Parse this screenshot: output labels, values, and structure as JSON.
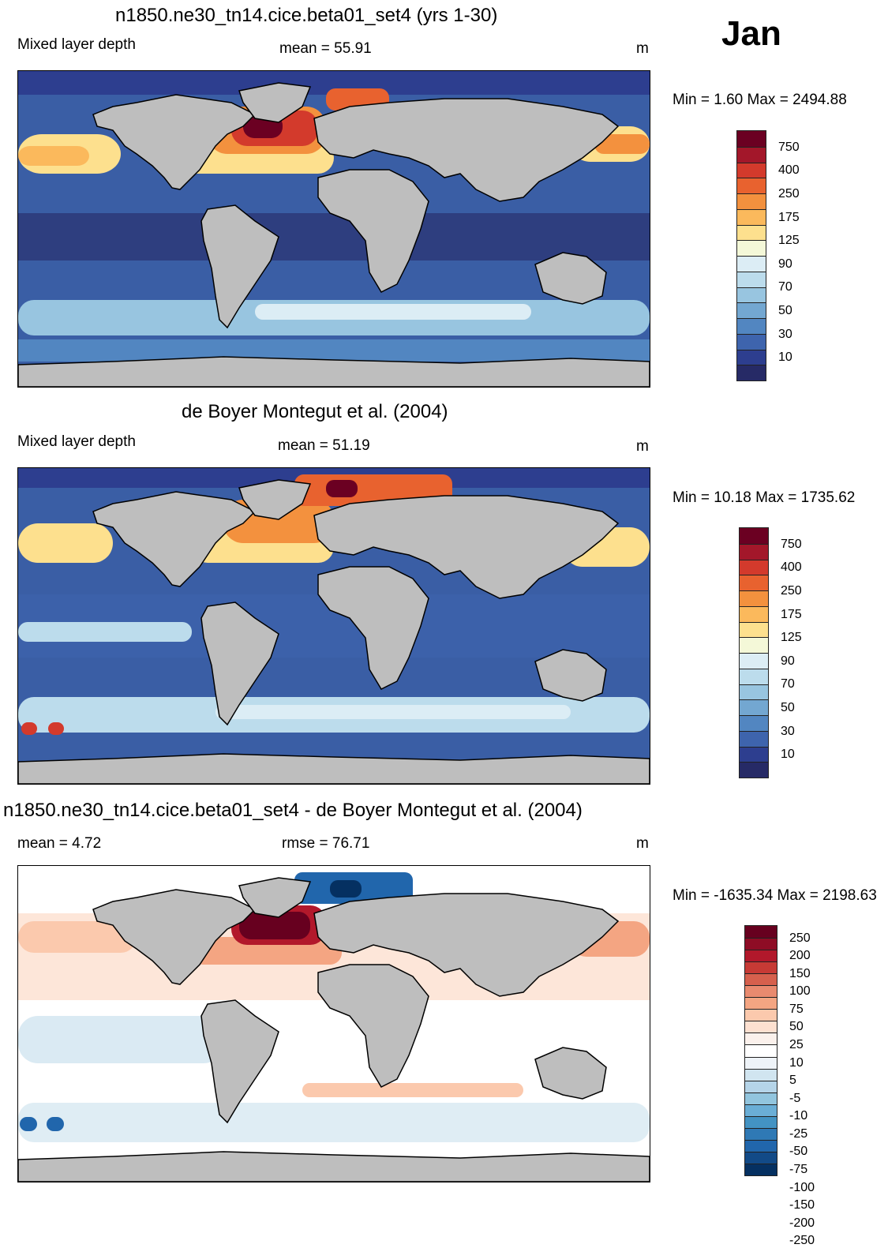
{
  "month": "Jan",
  "panels": [
    {
      "title": "n1850.ne30_tn14.cice.beta01_set4 (yrs 1-30)",
      "left_label": "Mixed layer depth",
      "stat_label": "mean =  55.91",
      "units": "m",
      "minmax": "Min =   1.60 Max = 2494.88",
      "colorbar": {
        "colors": [
          "#6b0022",
          "#a3172a",
          "#d33a2c",
          "#e8622f",
          "#f3913e",
          "#fbb95c",
          "#fde08e",
          "#f4f8d8",
          "#dcedf5",
          "#bcdcec",
          "#98c5e0",
          "#73a7d1",
          "#5286c1",
          "#3e64ad",
          "#2d3e8f",
          "#262a66"
        ],
        "labels": [
          "750",
          "400",
          "250",
          "175",
          "125",
          "90",
          "70",
          "50",
          "30",
          "10"
        ]
      }
    },
    {
      "title": "de Boyer Montegut et al. (2004)",
      "left_label": "Mixed layer depth",
      "stat_label": "mean =  51.19",
      "units": "m",
      "minmax": "Min =  10.18 Max = 1735.62",
      "colorbar": {
        "colors": [
          "#6b0022",
          "#a3172a",
          "#d33a2c",
          "#e8622f",
          "#f3913e",
          "#fbb95c",
          "#fde08e",
          "#f4f8d8",
          "#dcedf5",
          "#bcdcec",
          "#98c5e0",
          "#73a7d1",
          "#5286c1",
          "#3e64ad",
          "#2d3e8f",
          "#262a66"
        ],
        "labels": [
          "750",
          "400",
          "250",
          "175",
          "125",
          "90",
          "70",
          "50",
          "30",
          "10"
        ]
      }
    },
    {
      "title": "n1850.ne30_tn14.cice.beta01_set4 - de Boyer Montegut et al. (2004)",
      "left_label": "mean =   4.72",
      "stat_label": "rmse =  76.71",
      "units": "m",
      "minmax": "Min = -1635.34 Max = 2198.63",
      "colorbar": {
        "colors": [
          "#67001f",
          "#8e0c25",
          "#b2182b",
          "#c73a35",
          "#d6604d",
          "#e98a6f",
          "#f4a582",
          "#fbc9ad",
          "#fde0d0",
          "#fbf1ec",
          "#ffffff",
          "#eef3f8",
          "#d1e5f0",
          "#b5d4e8",
          "#92c5de",
          "#6aaed6",
          "#4393c3",
          "#2f79b5",
          "#2166ac",
          "#124a87",
          "#053061"
        ],
        "labels": [
          "250",
          "200",
          "150",
          "100",
          "75",
          "50",
          "25",
          "10",
          "5",
          "-5",
          "-10",
          "-25",
          "-50",
          "-75",
          "-100",
          "-150",
          "-200",
          "-250"
        ]
      }
    }
  ],
  "legend_keys": {
    "land": "#bebebe",
    "coast": "#000000"
  }
}
